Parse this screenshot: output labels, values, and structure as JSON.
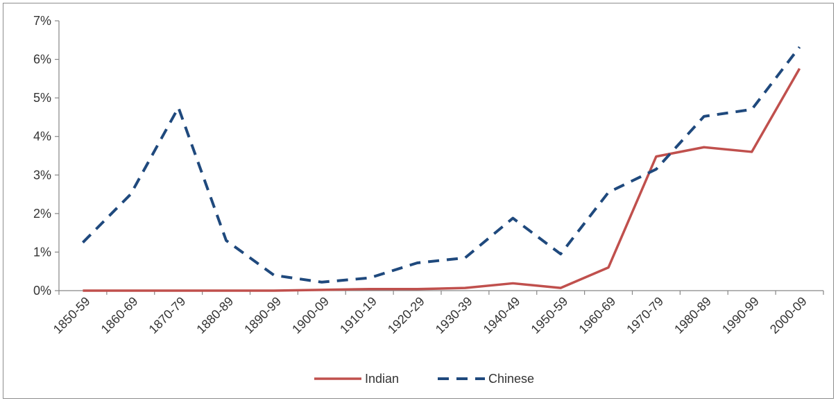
{
  "chart_data": {
    "type": "line",
    "categories": [
      "1850-59",
      "1860-69",
      "1870-79",
      "1880-89",
      "1890-99",
      "1900-09",
      "1910-19",
      "1920-29",
      "1930-39",
      "1940-49",
      "1950-59",
      "1960-69",
      "1970-79",
      "1980-89",
      "1990-99",
      "2000-09"
    ],
    "series": [
      {
        "name": "Indian",
        "color": "#c0504d",
        "dash": "solid",
        "values": [
          0.0,
          0.0,
          0.0,
          0.0,
          0.0,
          0.02,
          0.04,
          0.04,
          0.07,
          0.19,
          0.07,
          0.6,
          3.48,
          3.72,
          3.6,
          5.76
        ]
      },
      {
        "name": "Chinese",
        "color": "#1f497d",
        "dash": "dashed",
        "values": [
          1.25,
          2.5,
          4.75,
          1.3,
          0.4,
          0.22,
          0.33,
          0.72,
          0.85,
          1.88,
          0.95,
          2.55,
          3.15,
          4.52,
          4.7,
          6.32
        ]
      }
    ],
    "yticks": [
      "0%",
      "1%",
      "2%",
      "3%",
      "4%",
      "5%",
      "6%",
      "7%"
    ],
    "ylim": [
      0,
      7
    ],
    "grid": false,
    "legend_position": "bottom"
  }
}
